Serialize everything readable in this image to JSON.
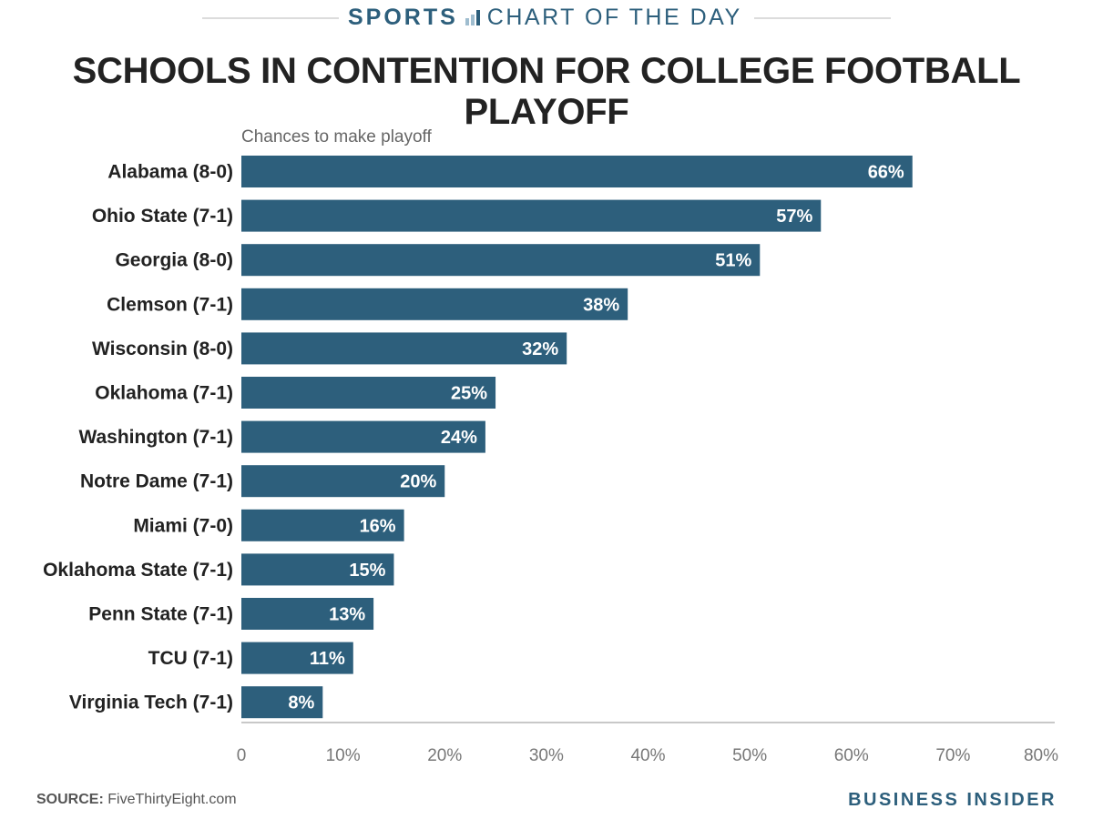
{
  "header": {
    "section_bold": "SPORTS",
    "section_rest": "CHART OF THE DAY",
    "chart_icon": "bar-chart-icon"
  },
  "footer": {
    "source_label": "SOURCE:",
    "source_value": "FiveThirtyEight.com",
    "brand": "BUSINESS INSIDER"
  },
  "colors": {
    "bar": "#2d5f7c",
    "accent": "#2d5f7c"
  },
  "chart_data": {
    "type": "bar",
    "orientation": "horizontal",
    "title": "SCHOOLS IN CONTENTION FOR COLLEGE FOOTBALL PLAYOFF",
    "subtitle": "Chances to make playoff",
    "categories": [
      "Alabama (8-0)",
      "Ohio State (7-1)",
      "Georgia (8-0)",
      "Clemson (7-1)",
      "Wisconsin (8-0)",
      "Oklahoma (7-1)",
      "Washington (7-1)",
      "Notre Dame (7-1)",
      "Miami (7-0)",
      "Oklahoma State (7-1)",
      "Penn State (7-1)",
      "TCU (7-1)",
      "Virginia Tech (7-1)"
    ],
    "values": [
      66,
      57,
      51,
      38,
      32,
      25,
      24,
      20,
      16,
      15,
      13,
      11,
      8
    ],
    "value_labels": [
      "66%",
      "57%",
      "51%",
      "38%",
      "32%",
      "25%",
      "24%",
      "20%",
      "16%",
      "15%",
      "13%",
      "11%",
      "8%"
    ],
    "xlim": [
      0,
      80
    ],
    "x_ticks": [
      0,
      10,
      20,
      30,
      40,
      50,
      60,
      70,
      80
    ],
    "x_tick_labels": [
      "0",
      "10%",
      "20%",
      "30%",
      "40%",
      "50%",
      "60%",
      "70%",
      "80%"
    ],
    "grid": false
  }
}
